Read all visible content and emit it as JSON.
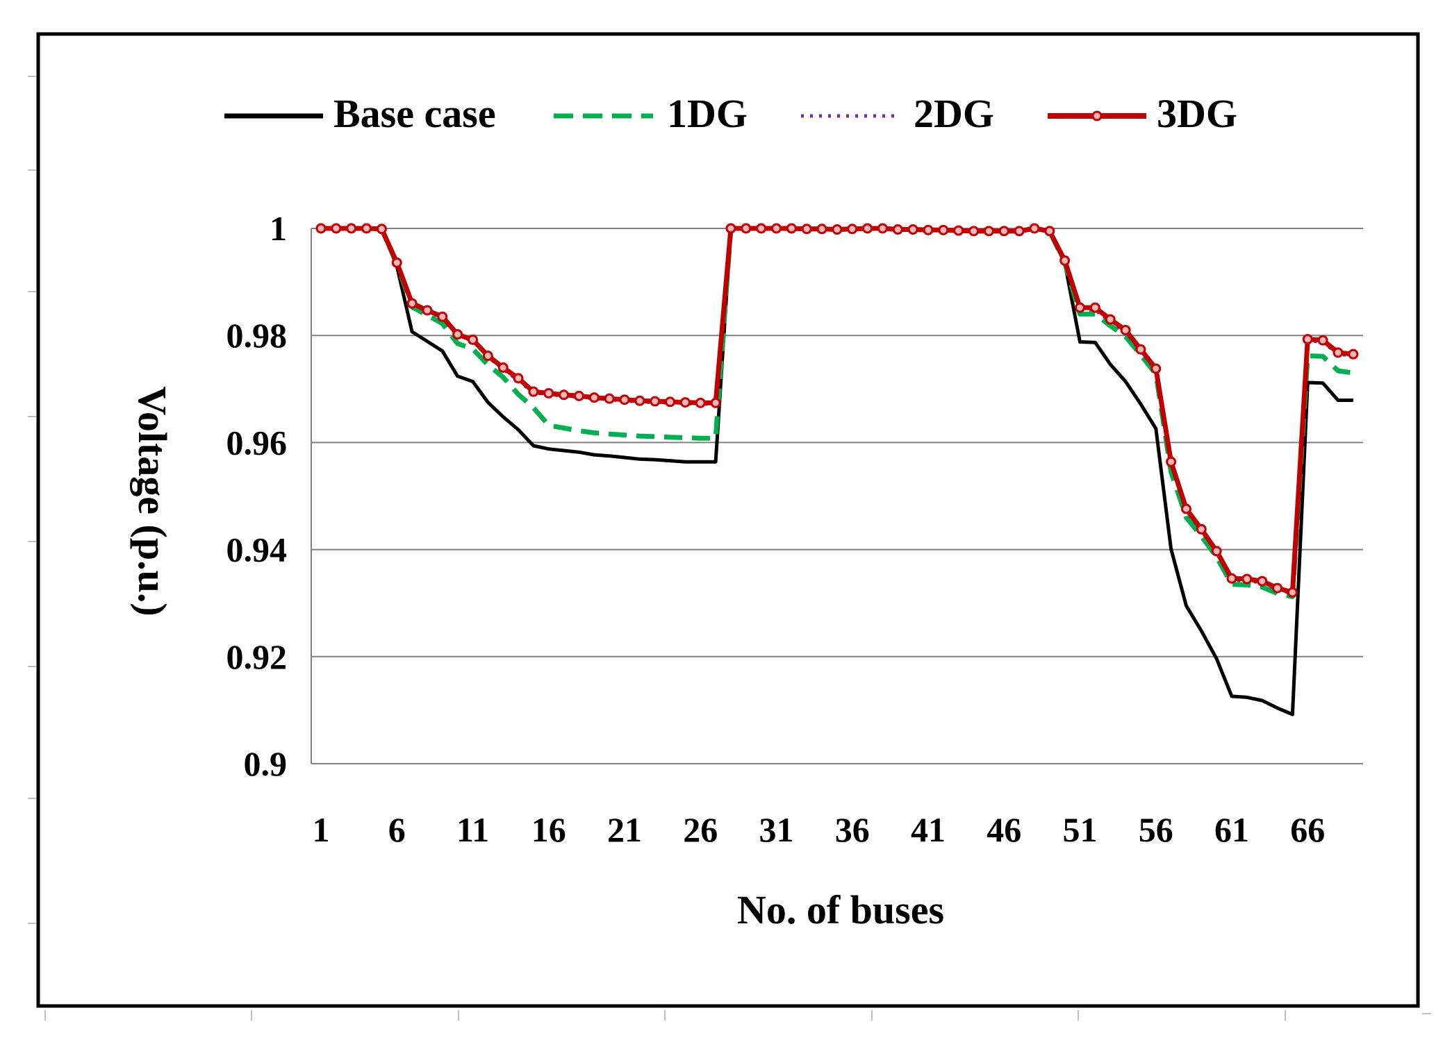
{
  "chart_data": {
    "type": "line",
    "title": "",
    "xlabel": "No. of buses",
    "ylabel": "Voltage (p.u.)",
    "x": [
      1,
      2,
      3,
      4,
      5,
      6,
      7,
      8,
      9,
      10,
      11,
      12,
      13,
      14,
      15,
      16,
      17,
      18,
      19,
      20,
      21,
      22,
      23,
      24,
      25,
      26,
      27,
      28,
      29,
      30,
      31,
      32,
      33,
      34,
      35,
      36,
      37,
      38,
      39,
      40,
      41,
      42,
      43,
      44,
      45,
      46,
      47,
      48,
      49,
      50,
      51,
      52,
      53,
      54,
      55,
      56,
      57,
      58,
      59,
      60,
      61,
      62,
      63,
      64,
      65,
      66,
      67,
      68,
      69
    ],
    "x_ticks": [
      "1",
      "6",
      "11",
      "16",
      "21",
      "26",
      "31",
      "36",
      "41",
      "46",
      "51",
      "56",
      "61",
      "66"
    ],
    "y_ticks": [
      "1",
      "0.98",
      "0.96",
      "0.94",
      "0.92",
      "0.9"
    ],
    "ylim": [
      0.9,
      1.0
    ],
    "grid": "horizontal",
    "legend_position": "top",
    "series": [
      {
        "name": "Base case",
        "color": "#000000",
        "style": "solid",
        "values": [
          1.0,
          1.0,
          1.0,
          1.0,
          0.9999,
          0.9929,
          0.9807,
          0.9789,
          0.9771,
          0.9724,
          0.9714,
          0.9675,
          0.9648,
          0.9624,
          0.9594,
          0.9588,
          0.9585,
          0.9582,
          0.9577,
          0.9575,
          0.9572,
          0.9569,
          0.9568,
          0.9566,
          0.9564,
          0.9564,
          0.9564,
          1.0,
          1.0,
          1.0,
          1.0,
          1.0,
          0.9999,
          0.9999,
          0.9998,
          0.9999,
          1.0,
          1.0,
          0.9998,
          0.9998,
          0.9997,
          0.9997,
          0.9996,
          0.9995,
          0.9995,
          0.9995,
          0.9995,
          1.0,
          0.9995,
          0.9935,
          0.9788,
          0.9787,
          0.9746,
          0.9714,
          0.9672,
          0.9626,
          0.9401,
          0.9295,
          0.9248,
          0.9196,
          0.9126,
          0.9124,
          0.9118,
          0.9104,
          0.9092,
          0.9712,
          0.9711,
          0.9679,
          0.9679
        ]
      },
      {
        "name": "1DG",
        "color": "#00b050",
        "style": "dashed",
        "values": [
          1.0,
          1.0,
          1.0,
          1.0,
          0.9999,
          0.9934,
          0.9853,
          0.9838,
          0.9822,
          0.9785,
          0.9775,
          0.9745,
          0.9722,
          0.969,
          0.9665,
          0.9632,
          0.9627,
          0.9622,
          0.9618,
          0.9616,
          0.9614,
          0.9612,
          0.9611,
          0.961,
          0.9609,
          0.9608,
          0.9608,
          1.0,
          1.0,
          1.0,
          1.0,
          1.0,
          0.9999,
          0.9999,
          0.9998,
          0.9999,
          1.0,
          1.0,
          0.9998,
          0.9998,
          0.9997,
          0.9997,
          0.9996,
          0.9995,
          0.9995,
          0.9995,
          0.9995,
          1.0,
          0.9995,
          0.9935,
          0.984,
          0.984,
          0.9818,
          0.9798,
          0.9764,
          0.9728,
          0.9545,
          0.946,
          0.9425,
          0.9386,
          0.9335,
          0.9334,
          0.933,
          0.9318,
          0.9312,
          0.9762,
          0.9761,
          0.9734,
          0.973
        ]
      },
      {
        "name": "2DG",
        "color": "#7030a0",
        "style": "dotted",
        "values": [
          1.0,
          1.0,
          1.0,
          1.0,
          0.9999,
          0.9935,
          0.9858,
          0.9845,
          0.9833,
          0.98,
          0.979,
          0.976,
          0.9737,
          0.9716,
          0.9693,
          0.969,
          0.9687,
          0.9685,
          0.9682,
          0.968,
          0.9678,
          0.9676,
          0.9675,
          0.9674,
          0.9673,
          0.9672,
          0.9672,
          1.0,
          1.0,
          1.0,
          1.0,
          1.0,
          0.9999,
          0.9999,
          0.9998,
          0.9999,
          1.0,
          1.0,
          0.9998,
          0.9998,
          0.9997,
          0.9997,
          0.9996,
          0.9995,
          0.9995,
          0.9995,
          0.9995,
          1.0,
          0.9995,
          0.9938,
          0.9848,
          0.9848,
          0.9826,
          0.9806,
          0.977,
          0.9734,
          0.956,
          0.9472,
          0.9435,
          0.9394,
          0.9343,
          0.9342,
          0.9338,
          0.9325,
          0.9318,
          0.979,
          0.9788,
          0.9765,
          0.9762
        ]
      },
      {
        "name": "3DG",
        "color": "#c00000",
        "style": "solid-marker",
        "values": [
          1.0,
          1.0,
          1.0,
          1.0,
          0.9999,
          0.9936,
          0.986,
          0.9847,
          0.9835,
          0.9802,
          0.9792,
          0.9762,
          0.974,
          0.972,
          0.9695,
          0.9692,
          0.9689,
          0.9687,
          0.9684,
          0.9682,
          0.968,
          0.9678,
          0.9677,
          0.9676,
          0.9675,
          0.9674,
          0.9674,
          1.0,
          1.0,
          1.0,
          1.0,
          1.0,
          0.9999,
          0.9999,
          0.9998,
          0.9999,
          1.0,
          1.0,
          0.9998,
          0.9998,
          0.9997,
          0.9997,
          0.9996,
          0.9995,
          0.9995,
          0.9995,
          0.9995,
          1.0,
          0.9995,
          0.994,
          0.9852,
          0.9852,
          0.983,
          0.981,
          0.9774,
          0.9738,
          0.9564,
          0.9476,
          0.9438,
          0.9397,
          0.9346,
          0.9345,
          0.9341,
          0.9328,
          0.932,
          0.9793,
          0.9791,
          0.9768,
          0.9765
        ]
      }
    ]
  }
}
